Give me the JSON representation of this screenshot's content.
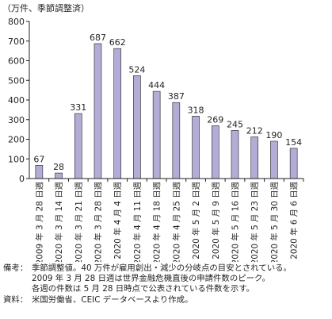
{
  "chart_data": {
    "type": "bar",
    "unit_label": "（万件、季節調整済）",
    "categories": [
      "2009 年 3 月 28 日週",
      "2020 年 3 月 14 日週",
      "2020 年 3 月 21 日週",
      "2020 年 3 月 28 日週",
      "2020 年 4 月 4 日週",
      "2020 年 4 月 11 日週",
      "2020 年 4 月 18 日週",
      "2020 年 4 月 25 日週",
      "2020 年 5 月 2 日週",
      "2020 年 5 月 9 日週",
      "2020 年 5 月 16 日週",
      "2020 年 5 月 23 日週",
      "2020 年 5 月 30 日週",
      "2020 年 6 月 6 日週"
    ],
    "values": [
      67,
      28,
      331,
      687,
      662,
      524,
      444,
      387,
      318,
      269,
      245,
      212,
      190,
      154
    ],
    "ylim": [
      0,
      800
    ],
    "yticks": [
      0,
      100,
      200,
      300,
      400,
      500,
      600,
      700,
      800
    ],
    "bar_color": "#b3acd6",
    "bar_stroke": "#231f20",
    "grid": false,
    "legend": "none"
  },
  "notes": [
    {
      "label": "備考：",
      "text": "季節調整値。40 万件が雇用創出・減少の分岐点の目安とされている。"
    },
    {
      "label": "",
      "text": "2009 年 3 月 28 日週は世界金融危機直後の申請件数のピーク。"
    },
    {
      "label": "",
      "text": "各週の件数は 5 月 28 日時点で公表されている件数を示す。"
    },
    {
      "label": "資料：",
      "text": "米国労働省、CEIC データベースより作成。"
    }
  ]
}
